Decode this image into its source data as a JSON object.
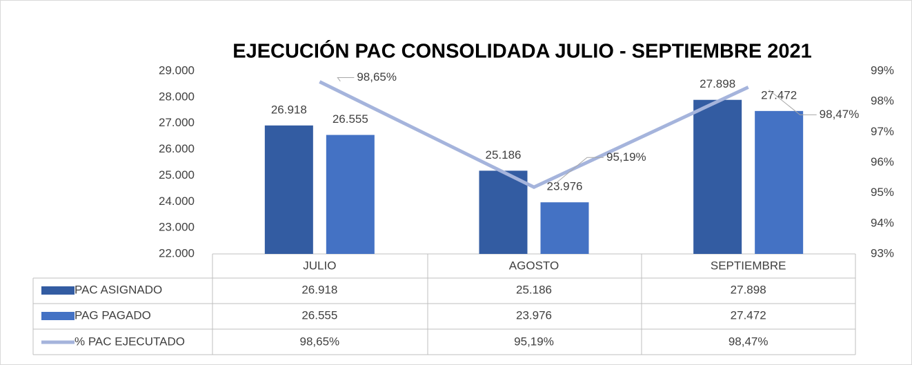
{
  "chart_data": {
    "type": "bar",
    "title": "EJECUCIÓN PAC CONSOLIDADA JULIO - SEPTIEMBRE 2021",
    "categories": [
      "JULIO",
      "AGOSTO",
      "SEPTIEMBRE"
    ],
    "series": [
      {
        "name": "PAC ASIGNADO",
        "color": "#335ca2",
        "values": [
          26918,
          25186,
          27898
        ],
        "value_labels": [
          "26.918",
          "25.186",
          "27.898"
        ]
      },
      {
        "name": "PAG PAGADO",
        "color": "#4472c4",
        "values": [
          26555,
          23976,
          27472
        ],
        "value_labels": [
          "26.555",
          "23.976",
          "27.472"
        ]
      },
      {
        "name": "% PAC EJECUTADO",
        "color": "#a5b4dc",
        "type": "line",
        "axis": "y2",
        "values": [
          98.65,
          95.19,
          98.47
        ],
        "value_labels": [
          "98,65%",
          "95,19%",
          "98,47%"
        ]
      }
    ],
    "ylim": [
      22000,
      29000
    ],
    "yticks": [
      {
        "value": 22000,
        "label": "22.000"
      },
      {
        "value": 23000,
        "label": "23.000"
      },
      {
        "value": 24000,
        "label": "24.000"
      },
      {
        "value": 25000,
        "label": "25.000"
      },
      {
        "value": 26000,
        "label": "26.000"
      },
      {
        "value": 27000,
        "label": "27.000"
      },
      {
        "value": 28000,
        "label": "28.000"
      },
      {
        "value": 29000,
        "label": "29.000"
      }
    ],
    "y2lim": [
      93,
      99
    ],
    "y2ticks": [
      {
        "value": 93,
        "label": "93%"
      },
      {
        "value": 94,
        "label": "94%"
      },
      {
        "value": 95,
        "label": "95%"
      },
      {
        "value": 96,
        "label": "96%"
      },
      {
        "value": 97,
        "label": "97%"
      },
      {
        "value": 98,
        "label": "98%"
      },
      {
        "value": 99,
        "label": "99%"
      }
    ],
    "data_table": true
  }
}
